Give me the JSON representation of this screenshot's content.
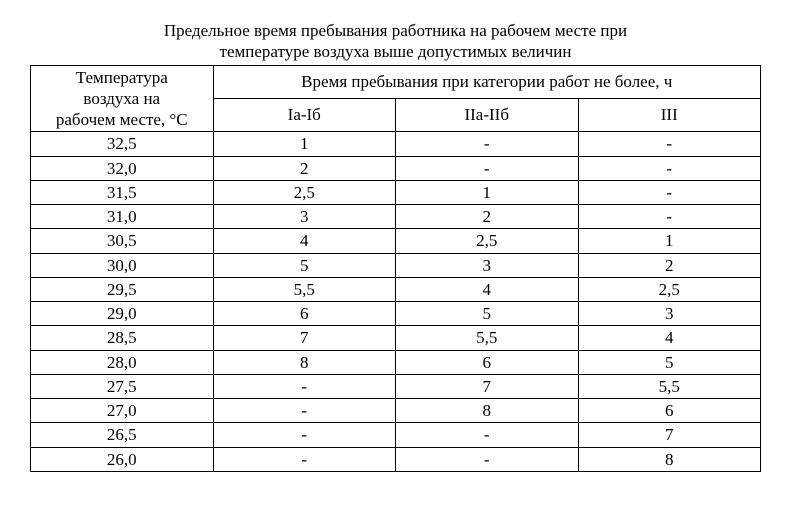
{
  "title_line1": "Предельное время пребывания работника на рабочем месте при",
  "title_line2": "температуре воздуха выше допустимых величин",
  "header": {
    "temp_line1": "Температура",
    "temp_line2": "воздуха на",
    "temp_line3": "рабочем месте, °С",
    "group": "Время пребывания при категории работ не более, ч",
    "cat1": "Iа-Iб",
    "cat2": "IIа-IIб",
    "cat3": "III"
  },
  "rows": [
    {
      "temp": "32,5",
      "c1": "1",
      "c2": "-",
      "c3": "-"
    },
    {
      "temp": "32,0",
      "c1": "2",
      "c2": "-",
      "c3": "-"
    },
    {
      "temp": "31,5",
      "c1": "2,5",
      "c2": "1",
      "c3": "-"
    },
    {
      "temp": "31,0",
      "c1": "3",
      "c2": "2",
      "c3": "-"
    },
    {
      "temp": "30,5",
      "c1": "4",
      "c2": "2,5",
      "c3": "1"
    },
    {
      "temp": "30,0",
      "c1": "5",
      "c2": "3",
      "c3": "2"
    },
    {
      "temp": "29,5",
      "c1": "5,5",
      "c2": "4",
      "c3": "2,5"
    },
    {
      "temp": "29,0",
      "c1": "6",
      "c2": "5",
      "c3": "3"
    },
    {
      "temp": "28,5",
      "c1": "7",
      "c2": "5,5",
      "c3": "4"
    },
    {
      "temp": "28,0",
      "c1": "8",
      "c2": "6",
      "c3": "5"
    },
    {
      "temp": "27,5",
      "c1": "-",
      "c2": "7",
      "c3": "5,5"
    },
    {
      "temp": "27,0",
      "c1": "-",
      "c2": "8",
      "c3": "6"
    },
    {
      "temp": "26,5",
      "c1": "-",
      "c2": "-",
      "c3": "7"
    },
    {
      "temp": "26,0",
      "c1": "-",
      "c2": "-",
      "c3": "8"
    }
  ],
  "style": {
    "font_family": "Times New Roman",
    "title_fontsize_pt": 13,
    "cell_fontsize_pt": 13,
    "border_color": "#000000",
    "background_color": "#ffffff",
    "text_color": "#000000",
    "col_widths_pct": [
      25,
      25,
      25,
      25
    ],
    "text_align": "center"
  }
}
